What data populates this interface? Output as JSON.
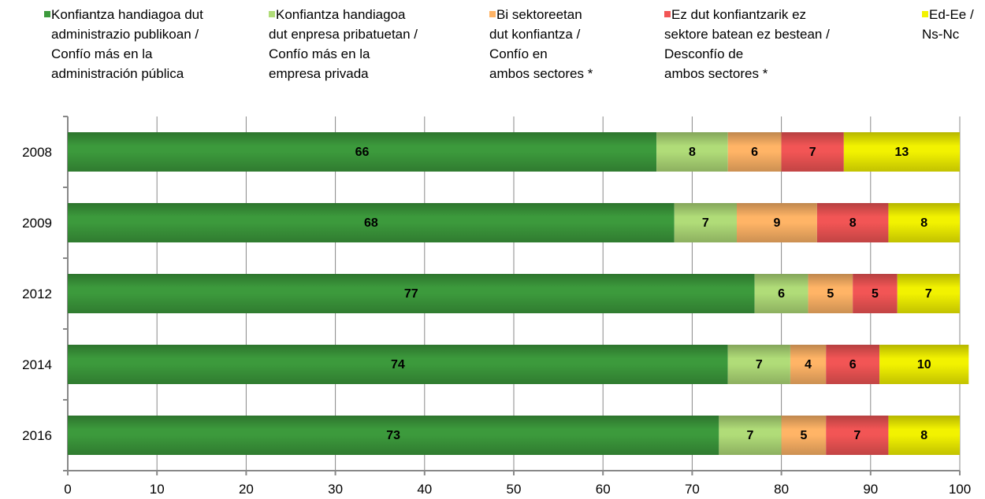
{
  "chart_data": {
    "type": "stacked-barh",
    "categories": [
      "2008",
      "2009",
      "2012",
      "2014",
      "2016"
    ],
    "series": [
      {
        "name": "Konfiantza handiagoa dut\nadministrazio publikoan /\nConfío más en la\nadministración pública",
        "color": "#3c9a3c",
        "values": [
          66,
          68,
          77,
          74,
          73
        ]
      },
      {
        "name": "Konfiantza handiagoa\ndut enpresa pribatuetan /\nConfío más en la\nempresa privada",
        "color": "#b0dc78",
        "values": [
          8,
          7,
          6,
          7,
          7
        ]
      },
      {
        "name": "Bi sektoreetan\ndut konfiantza /\nConfío en\nambos sectores *",
        "color": "#ffb466",
        "values": [
          6,
          9,
          5,
          4,
          5
        ]
      },
      {
        "name": "Ez dut konfiantzarik ez\nsektore batean ez bestean /\nDesconfío de\nambos sectores *",
        "color": "#f25555",
        "values": [
          7,
          8,
          5,
          6,
          7
        ]
      },
      {
        "name": "Ed-Ee /\nNs-Nc",
        "color": "#f2f200",
        "values": [
          13,
          8,
          7,
          10,
          8
        ]
      }
    ],
    "xlim": [
      0,
      100
    ],
    "xticks": [
      0,
      10,
      20,
      30,
      40,
      50,
      60,
      70,
      80,
      90,
      100
    ],
    "grid": true,
    "legend": "top"
  }
}
